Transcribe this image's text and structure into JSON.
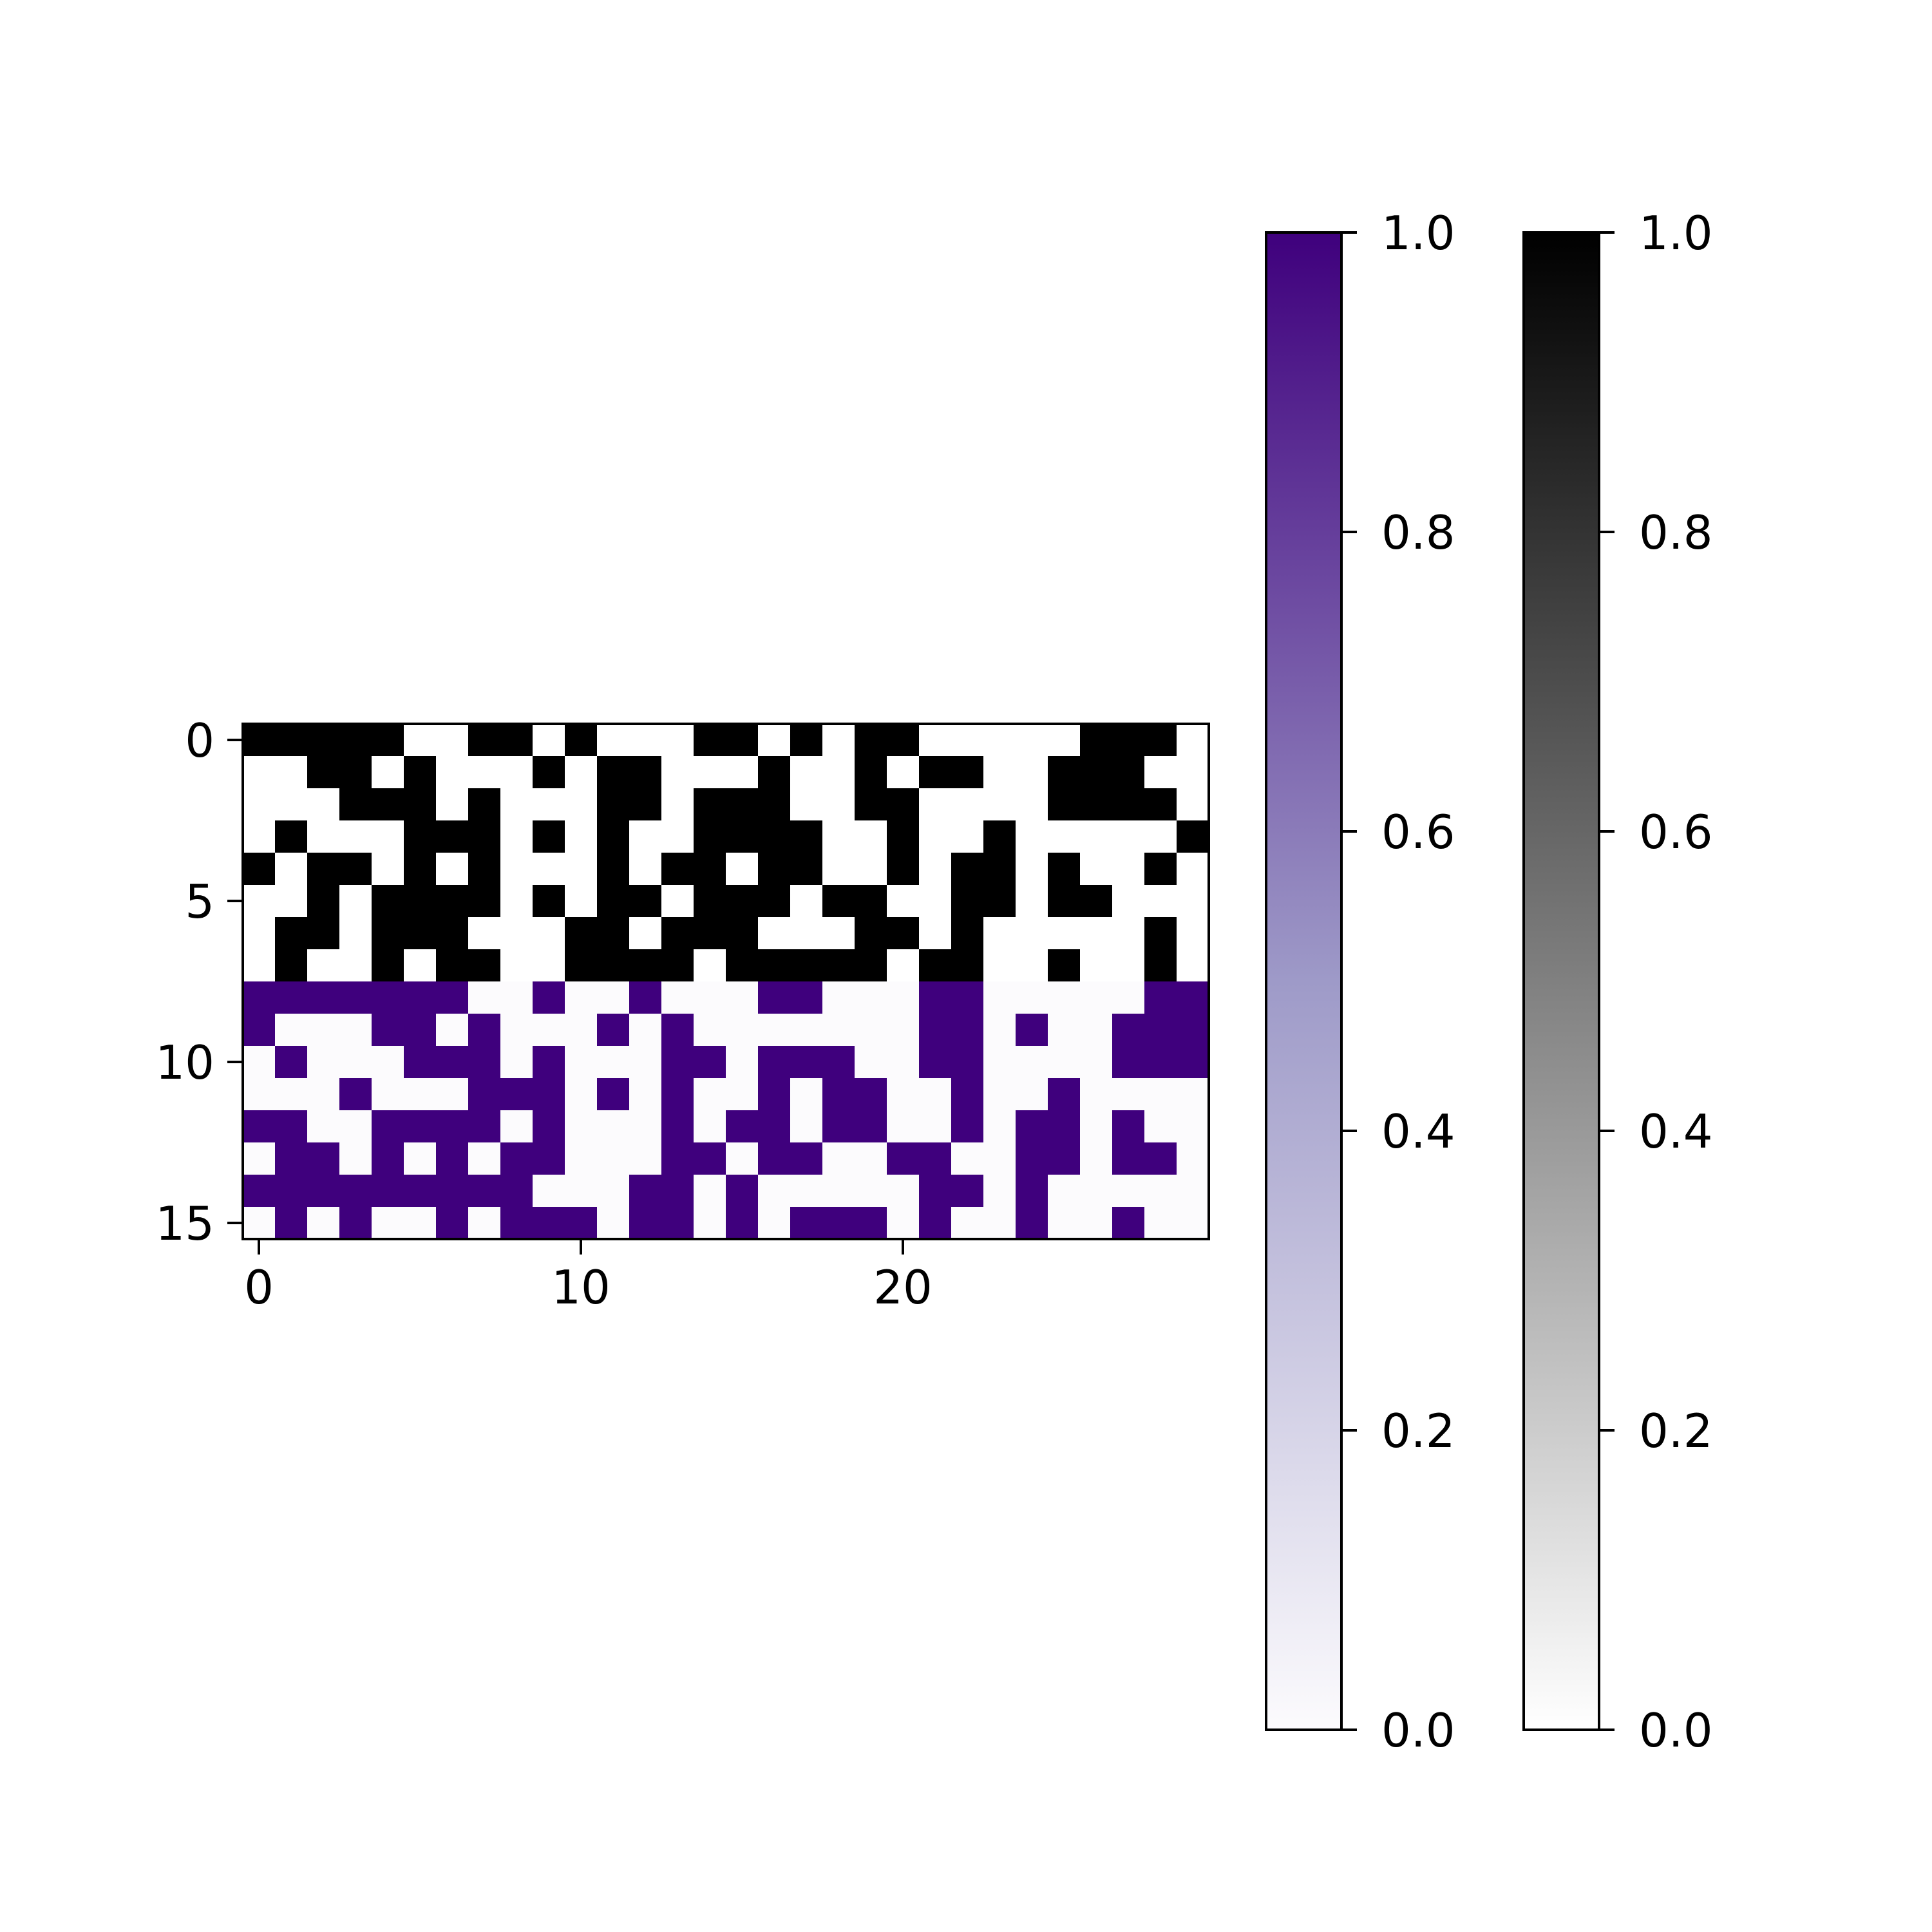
{
  "chart_data": {
    "type": "heatmap",
    "rows": 16,
    "cols": 30,
    "x_ticks": [
      0,
      10,
      20
    ],
    "y_ticks": [
      0,
      5,
      10,
      15
    ],
    "xlim": [
      -0.5,
      29.5
    ],
    "ylim": [
      15.5,
      -0.5
    ],
    "grid": false,
    "layers": [
      {
        "name": "binary",
        "colormap": "Greys",
        "rows": [
          0,
          7
        ],
        "values": [
          [
            1,
            1,
            1,
            1,
            1,
            0,
            0,
            1,
            1,
            0,
            1,
            0,
            0,
            0,
            1,
            1,
            0,
            1,
            0,
            1,
            1,
            0,
            0,
            0,
            0,
            0,
            1,
            1,
            1,
            0
          ],
          [
            0,
            0,
            1,
            1,
            0,
            1,
            0,
            0,
            0,
            1,
            0,
            1,
            1,
            0,
            0,
            0,
            1,
            0,
            0,
            1,
            0,
            1,
            1,
            0,
            0,
            1,
            1,
            1,
            0,
            0
          ],
          [
            0,
            0,
            0,
            1,
            1,
            1,
            0,
            1,
            0,
            0,
            0,
            1,
            1,
            0,
            1,
            1,
            1,
            0,
            0,
            1,
            1,
            0,
            0,
            0,
            0,
            1,
            1,
            1,
            1,
            0
          ],
          [
            0,
            1,
            0,
            0,
            0,
            1,
            1,
            1,
            0,
            1,
            0,
            1,
            0,
            0,
            1,
            1,
            1,
            1,
            0,
            0,
            1,
            0,
            0,
            1,
            0,
            0,
            0,
            0,
            0,
            1
          ],
          [
            1,
            0,
            1,
            1,
            0,
            1,
            0,
            1,
            0,
            0,
            0,
            1,
            0,
            1,
            1,
            0,
            1,
            1,
            0,
            0,
            1,
            0,
            1,
            1,
            0,
            1,
            0,
            0,
            1,
            0
          ],
          [
            0,
            0,
            1,
            0,
            1,
            1,
            1,
            1,
            0,
            1,
            0,
            1,
            1,
            0,
            1,
            1,
            1,
            0,
            1,
            1,
            0,
            0,
            1,
            1,
            0,
            1,
            1,
            0,
            0,
            0
          ],
          [
            0,
            1,
            1,
            0,
            1,
            1,
            1,
            0,
            0,
            0,
            1,
            1,
            0,
            1,
            1,
            1,
            0,
            0,
            0,
            1,
            1,
            0,
            1,
            0,
            0,
            0,
            0,
            0,
            1,
            0
          ],
          [
            0,
            1,
            0,
            0,
            1,
            0,
            1,
            1,
            0,
            0,
            1,
            1,
            1,
            1,
            0,
            1,
            1,
            1,
            1,
            1,
            0,
            1,
            1,
            0,
            0,
            1,
            0,
            0,
            1,
            0
          ]
        ]
      },
      {
        "name": "purple",
        "colormap": "Purples",
        "rows": [
          8,
          15
        ],
        "values": [
          [
            1,
            1,
            1,
            1,
            1,
            1,
            1,
            0,
            0,
            1,
            0,
            0,
            1,
            0,
            0,
            0,
            1,
            1,
            0,
            0,
            0,
            1,
            1,
            0,
            0,
            0,
            0,
            0,
            1,
            1
          ],
          [
            1,
            0,
            0,
            0,
            1,
            1,
            0,
            1,
            0,
            0,
            0,
            1,
            0,
            1,
            0,
            0,
            0,
            0,
            0,
            0,
            0,
            1,
            1,
            0,
            1,
            0,
            0,
            1,
            1,
            1
          ],
          [
            0,
            1,
            0,
            0,
            0,
            1,
            1,
            1,
            0,
            1,
            0,
            0,
            0,
            1,
            1,
            0,
            1,
            1,
            1,
            0,
            0,
            1,
            1,
            0,
            0,
            0,
            0,
            1,
            1,
            1
          ],
          [
            0,
            0,
            0,
            1,
            0,
            0,
            0,
            1,
            1,
            1,
            0,
            1,
            0,
            1,
            0,
            0,
            1,
            0,
            1,
            1,
            0,
            0,
            1,
            0,
            0,
            1,
            0,
            0,
            0,
            0
          ],
          [
            1,
            1,
            0,
            0,
            1,
            1,
            1,
            1,
            0,
            1,
            0,
            0,
            0,
            1,
            0,
            1,
            1,
            0,
            1,
            1,
            0,
            0,
            1,
            0,
            1,
            1,
            0,
            1,
            0,
            0
          ],
          [
            0,
            1,
            1,
            0,
            1,
            0,
            1,
            0,
            1,
            1,
            0,
            0,
            0,
            1,
            1,
            0,
            1,
            1,
            0,
            0,
            1,
            1,
            0,
            0,
            1,
            1,
            0,
            1,
            1,
            0
          ],
          [
            1,
            1,
            1,
            1,
            1,
            1,
            1,
            1,
            1,
            0,
            0,
            0,
            1,
            1,
            0,
            1,
            0,
            0,
            0,
            0,
            0,
            1,
            1,
            0,
            1,
            0,
            0,
            0,
            0,
            0
          ],
          [
            0,
            1,
            0,
            1,
            0,
            0,
            1,
            0,
            1,
            1,
            1,
            0,
            1,
            1,
            0,
            1,
            0,
            1,
            1,
            1,
            0,
            1,
            0,
            0,
            1,
            0,
            0,
            1,
            0,
            0
          ]
        ]
      }
    ],
    "colorbars": [
      {
        "name": "Purples",
        "ticks": [
          "0.0",
          "0.2",
          "0.4",
          "0.6",
          "0.8",
          "1.0"
        ],
        "range": [
          0,
          1
        ],
        "low_color": "#fcfbfd",
        "mid_color": "#9e9ac8",
        "high_color": "#3f007d"
      },
      {
        "name": "Greys",
        "ticks": [
          "0.0",
          "0.2",
          "0.4",
          "0.6",
          "0.8",
          "1.0"
        ],
        "range": [
          0,
          1
        ],
        "low_color": "#ffffff",
        "mid_color": "#808080",
        "high_color": "#000000"
      }
    ]
  }
}
